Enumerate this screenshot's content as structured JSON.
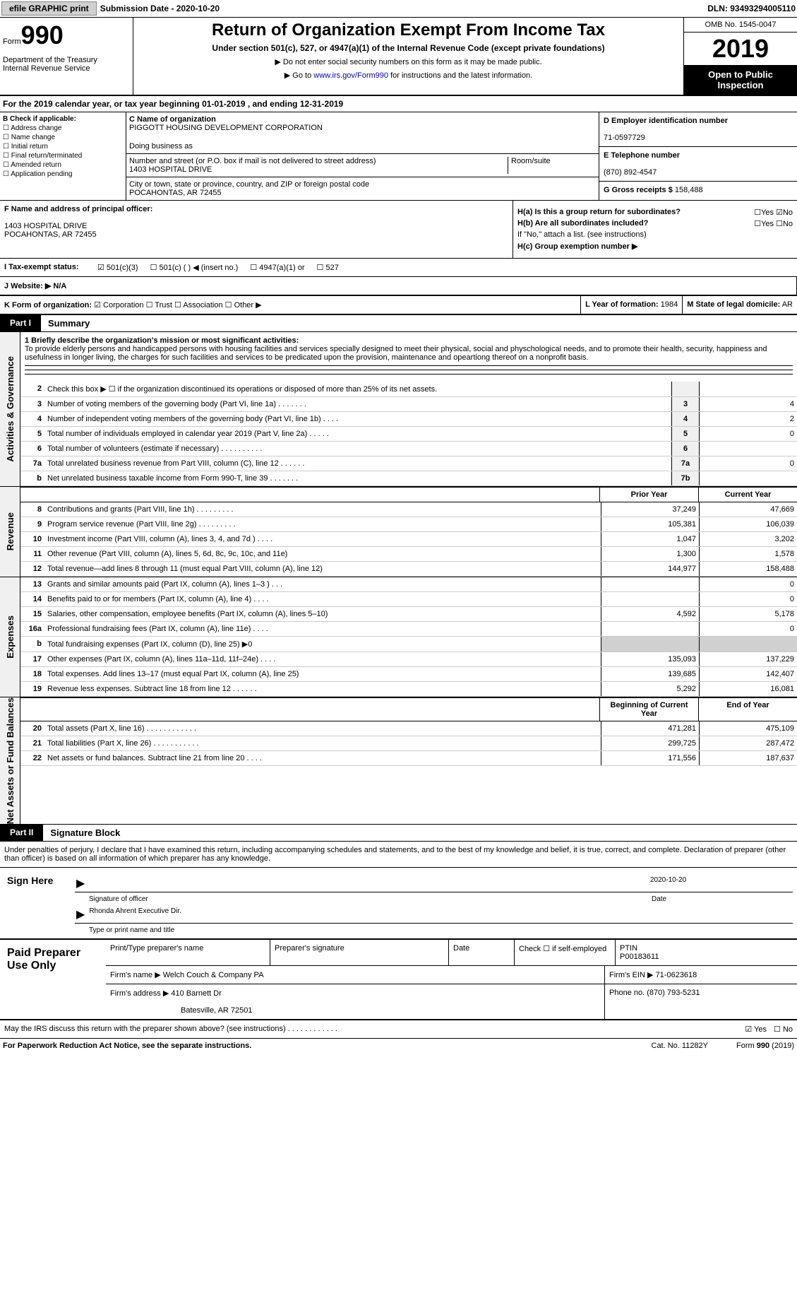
{
  "top": {
    "efile_btn": "efile GRAPHIC print",
    "submission": "Submission Date - 2020-10-20",
    "dln": "DLN: 93493294005110"
  },
  "header": {
    "form_label": "Form",
    "form_no": "990",
    "dept": "Department of the Treasury\nInternal Revenue Service",
    "title": "Return of Organization Exempt From Income Tax",
    "subtitle": "Under section 501(c), 527, or 4947(a)(1) of the Internal Revenue Code (except private foundations)",
    "note1": "▶ Do not enter social security numbers on this form as it may be made public.",
    "note2_pre": "▶ Go to ",
    "note2_link": "www.irs.gov/Form990",
    "note2_post": " for instructions and the latest information.",
    "omb": "OMB No. 1545-0047",
    "year": "2019",
    "inspection": "Open to Public Inspection"
  },
  "period": "For the 2019 calendar year, or tax year beginning 01-01-2019    , and ending 12-31-2019",
  "sectionB": {
    "hdr": "B Check if applicable:",
    "items": [
      "Address change",
      "Name change",
      "Initial return",
      "Final return/terminated",
      "Amended return",
      "Application pending"
    ]
  },
  "sectionC": {
    "label": "C Name of organization",
    "name": "PIGGOTT HOUSING DEVELOPMENT CORPORATION",
    "dba_label": "Doing business as",
    "addr_label": "Number and street (or P.O. box if mail is not delivered to street address)",
    "addr": "1403 HOSPITAL DRIVE",
    "room_label": "Room/suite",
    "city_label": "City or town, state or province, country, and ZIP or foreign postal code",
    "city": "POCAHONTAS, AR  72455"
  },
  "sectionD": {
    "label": "D Employer identification number",
    "val": "71-0597729"
  },
  "sectionE": {
    "label": "E Telephone number",
    "val": "(870) 892-4547"
  },
  "sectionG": {
    "label": "G Gross receipts $",
    "val": "158,488"
  },
  "sectionF": {
    "label": "F  Name and address of principal officer:",
    "addr1": "1403 HOSPITAL DRIVE",
    "addr2": "POCAHONTAS, AR  72455"
  },
  "sectionH": {
    "a": "H(a)  Is this a group return for subordinates?",
    "b": "H(b)  Are all subordinates included?",
    "b_note": "If \"No,\" attach a list. (see instructions)",
    "c": "H(c)  Group exemption number ▶",
    "yes": "Yes",
    "no": "No"
  },
  "statusI": {
    "label": "I  Tax-exempt status:",
    "opts": [
      "501(c)(3)",
      "501(c) (  ) ◀ (insert no.)",
      "4947(a)(1) or",
      "527"
    ]
  },
  "sectionJ": {
    "label": "J  Website: ▶",
    "val": "N/A"
  },
  "sectionK": {
    "label": "K Form of organization:",
    "opts": [
      "Corporation",
      "Trust",
      "Association",
      "Other ▶"
    ]
  },
  "sectionL": {
    "label": "L Year of formation:",
    "val": "1984"
  },
  "sectionM": {
    "label": "M State of legal domicile:",
    "val": "AR"
  },
  "partI": {
    "label": "Part I",
    "title": "Summary"
  },
  "mission": {
    "label": "1  Briefly describe the organization's mission or most significant activities:",
    "text": "To provide elderly persons and handicapped persons with housing facilities and services specially designed to meet their physical, social and physchological needs, and to promote their health, security, happiness and usefulness in longer living, the charges for such facilities and services to be predicated upon the provision, maintenance and opeartiong thereof on a nonprofit basis."
  },
  "gov_lines": [
    {
      "n": "2",
      "d": "Check this box ▶ ☐  if the organization discontinued its operations or disposed of more than 25% of its net assets.",
      "box": "",
      "v": ""
    },
    {
      "n": "3",
      "d": "Number of voting members of the governing body (Part VI, line 1a)    .    .    .    .    .    .    .",
      "box": "3",
      "v": "4"
    },
    {
      "n": "4",
      "d": "Number of independent voting members of the governing body (Part VI, line 1b)    .    .    .    .",
      "box": "4",
      "v": "2"
    },
    {
      "n": "5",
      "d": "Total number of individuals employed in calendar year 2019 (Part V, line 2a)    .    .    .    .    .",
      "box": "5",
      "v": "0"
    },
    {
      "n": "6",
      "d": "Total number of volunteers (estimate if necessary)    .    .    .    .    .    .    .    .    .    .",
      "box": "6",
      "v": ""
    },
    {
      "n": "7a",
      "d": "Total unrelated business revenue from Part VIII, column (C), line 12    .    .    .    .    .    .",
      "box": "7a",
      "v": "0"
    },
    {
      "n": "b",
      "d": "Net unrelated business taxable income from Form 990-T, line 39    .    .    .    .    .    .    .",
      "box": "7b",
      "v": ""
    }
  ],
  "side_labels": {
    "gov": "Activities & Governance",
    "rev": "Revenue",
    "exp": "Expenses",
    "net": "Net Assets or Fund Balances"
  },
  "col_hdr": {
    "prior": "Prior Year",
    "current": "Current Year",
    "begin": "Beginning of Current Year",
    "end": "End of Year"
  },
  "rev_lines": [
    {
      "n": "8",
      "d": "Contributions and grants (Part VIII, line 1h)    .    .    .    .    .    .    .    .    .",
      "p": "37,249",
      "c": "47,669"
    },
    {
      "n": "9",
      "d": "Program service revenue (Part VIII, line 2g)    .    .    .    .    .    .    .    .    .",
      "p": "105,381",
      "c": "106,039"
    },
    {
      "n": "10",
      "d": "Investment income (Part VIII, column (A), lines 3, 4, and 7d )    .    .    .    .",
      "p": "1,047",
      "c": "3,202"
    },
    {
      "n": "11",
      "d": "Other revenue (Part VIII, column (A), lines 5, 6d, 8c, 9c, 10c, and 11e)",
      "p": "1,300",
      "c": "1,578"
    },
    {
      "n": "12",
      "d": "Total revenue—add lines 8 through 11 (must equal Part VIII, column (A), line 12)",
      "p": "144,977",
      "c": "158,488"
    }
  ],
  "exp_lines": [
    {
      "n": "13",
      "d": "Grants and similar amounts paid (Part IX, column (A), lines 1–3 )    .    .    .",
      "p": "",
      "c": "0"
    },
    {
      "n": "14",
      "d": "Benefits paid to or for members (Part IX, column (A), line 4)    .    .    .    .",
      "p": "",
      "c": "0"
    },
    {
      "n": "15",
      "d": "Salaries, other compensation, employee benefits (Part IX, column (A), lines 5–10)",
      "p": "4,592",
      "c": "5,178"
    },
    {
      "n": "16a",
      "d": "Professional fundraising fees (Part IX, column (A), line 11e)    .    .    .    .",
      "p": "",
      "c": "0"
    },
    {
      "n": "b",
      "d": "Total fundraising expenses (Part IX, column (D), line 25) ▶0",
      "p": "",
      "c": "",
      "gray": true
    },
    {
      "n": "17",
      "d": "Other expenses (Part IX, column (A), lines 11a–11d, 11f–24e)    .    .    .    .",
      "p": "135,093",
      "c": "137,229"
    },
    {
      "n": "18",
      "d": "Total expenses. Add lines 13–17 (must equal Part IX, column (A), line 25)",
      "p": "139,685",
      "c": "142,407"
    },
    {
      "n": "19",
      "d": "Revenue less expenses. Subtract line 18 from line 12    .    .    .    .    .    .",
      "p": "5,292",
      "c": "16,081"
    }
  ],
  "net_lines": [
    {
      "n": "20",
      "d": "Total assets (Part X, line 16)    .    .    .    .    .    .    .    .    .    .    .    .",
      "p": "471,281",
      "c": "475,109"
    },
    {
      "n": "21",
      "d": "Total liabilities (Part X, line 26)    .    .    .    .    .    .    .    .    .    .    .",
      "p": "299,725",
      "c": "287,472"
    },
    {
      "n": "22",
      "d": "Net assets or fund balances. Subtract line 21 from line 20    .    .    .    .",
      "p": "171,556",
      "c": "187,637"
    }
  ],
  "partII": {
    "label": "Part II",
    "title": "Signature Block"
  },
  "sig_text": "Under penalties of perjury, I declare that I have examined this return, including accompanying schedules and statements, and to the best of my knowledge and belief, it is true, correct, and complete. Declaration of preparer (other than officer) is based on all information of which preparer has any knowledge.",
  "sign_here": {
    "label": "Sign Here",
    "sig_label": "Signature of officer",
    "date": "2020-10-20",
    "date_label": "Date",
    "name": "Rhonda Ahrent Executive Dir.",
    "name_label": "Type or print name and title"
  },
  "preparer": {
    "label": "Paid Preparer Use Only",
    "hdr": [
      "Print/Type preparer's name",
      "Preparer's signature",
      "Date"
    ],
    "check_label": "Check ☐ if self-employed",
    "ptin_label": "PTIN",
    "ptin": "P00183611",
    "firm_label": "Firm's name    ▶",
    "firm": "Welch Couch & Company PA",
    "ein_label": "Firm's EIN ▶",
    "ein": "71-0623618",
    "addr_label": "Firm's address ▶",
    "addr": "410 Barnett Dr",
    "city": "Batesville, AR  72501",
    "phone_label": "Phone no.",
    "phone": "(870) 793-5231"
  },
  "footer": {
    "discuss": "May the IRS discuss this return with the preparer shown above? (see instructions)    .    .    .    .    .    .    .    .    .    .    .    .",
    "yes": "Yes",
    "no": "No",
    "paperwork": "For Paperwork Reduction Act Notice, see the separate instructions.",
    "cat": "Cat. No. 11282Y",
    "form": "Form 990 (2019)"
  }
}
